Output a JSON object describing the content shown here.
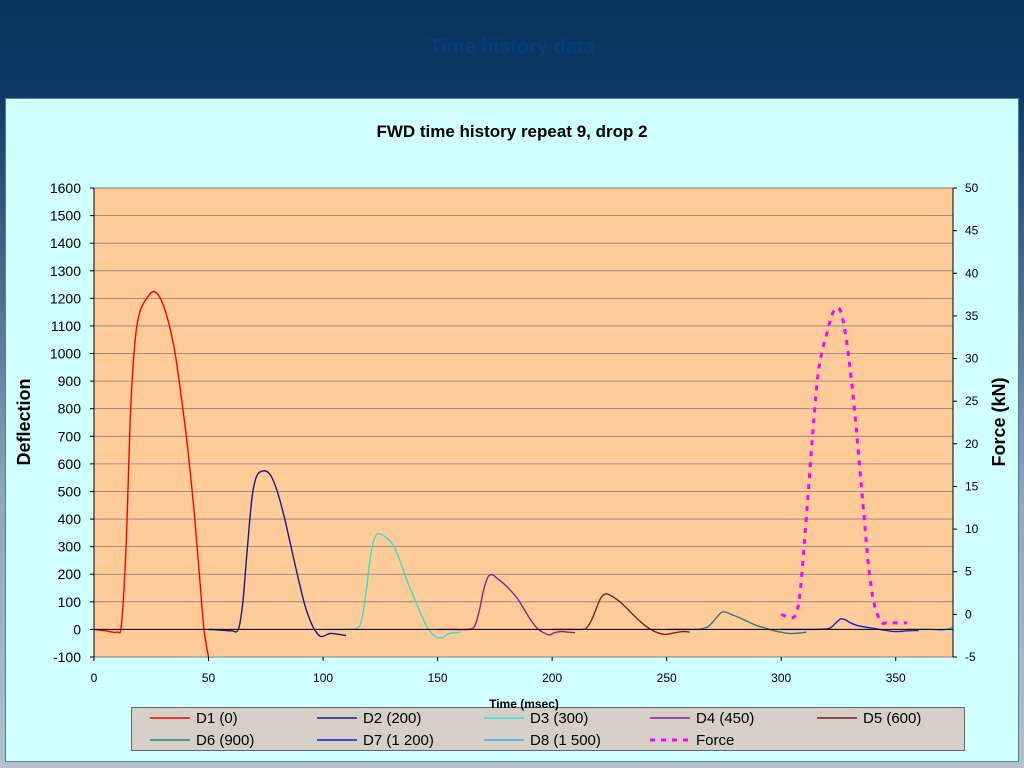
{
  "slide": {
    "title": "Time history data"
  },
  "chart_data": {
    "type": "line",
    "title": "FWD time history repeat 9, drop 2",
    "xlabel": "Time (msec)",
    "ylabel": "Deflection",
    "y2label": "Force (kN)",
    "xlim": [
      0,
      375
    ],
    "ylim": [
      -100,
      1600
    ],
    "y2lim": [
      -5,
      50
    ],
    "x_ticks": [
      0,
      50,
      100,
      150,
      200,
      250,
      300,
      350
    ],
    "y_ticks": [
      -100,
      0,
      100,
      200,
      300,
      400,
      500,
      600,
      700,
      800,
      900,
      1000,
      1100,
      1200,
      1300,
      1400,
      1500,
      1600
    ],
    "y2_ticks": [
      -5,
      0,
      5,
      10,
      15,
      20,
      25,
      30,
      35,
      40,
      45,
      50
    ],
    "grid": "horizontal",
    "legend_position": "bottom",
    "series": [
      {
        "name": "D1 (0)",
        "color": "#ff0000",
        "axis": "left",
        "style": "solid",
        "points": [
          [
            0,
            0
          ],
          [
            5,
            -5
          ],
          [
            10,
            -10
          ],
          [
            12,
            20
          ],
          [
            14,
            300
          ],
          [
            16,
            800
          ],
          [
            18,
            1050
          ],
          [
            20,
            1150
          ],
          [
            23,
            1200
          ],
          [
            26,
            1225
          ],
          [
            29,
            1200
          ],
          [
            32,
            1130
          ],
          [
            35,
            1020
          ],
          [
            38,
            850
          ],
          [
            41,
            650
          ],
          [
            44,
            400
          ],
          [
            46,
            200
          ],
          [
            48,
            0
          ],
          [
            50,
            -100
          ]
        ]
      },
      {
        "name": "D2 (200)",
        "color": "#1a1a80",
        "axis": "left",
        "style": "solid",
        "points": [
          [
            50,
            0
          ],
          [
            55,
            -2
          ],
          [
            60,
            -5
          ],
          [
            63,
            0
          ],
          [
            65,
            100
          ],
          [
            67,
            300
          ],
          [
            69,
            480
          ],
          [
            71,
            555
          ],
          [
            74,
            575
          ],
          [
            77,
            560
          ],
          [
            80,
            500
          ],
          [
            83,
            410
          ],
          [
            86,
            300
          ],
          [
            89,
            190
          ],
          [
            92,
            90
          ],
          [
            95,
            20
          ],
          [
            98,
            -20
          ],
          [
            100,
            -25
          ],
          [
            103,
            -15
          ],
          [
            107,
            -18
          ],
          [
            110,
            -22
          ]
        ]
      },
      {
        "name": "D3 (300)",
        "color": "#33e0d0",
        "axis": "left",
        "style": "solid",
        "points": [
          [
            100,
            0
          ],
          [
            105,
            0
          ],
          [
            110,
            0
          ],
          [
            115,
            5
          ],
          [
            117,
            40
          ],
          [
            119,
            150
          ],
          [
            121,
            280
          ],
          [
            123,
            340
          ],
          [
            125,
            345
          ],
          [
            128,
            330
          ],
          [
            131,
            300
          ],
          [
            134,
            240
          ],
          [
            137,
            170
          ],
          [
            140,
            110
          ],
          [
            143,
            50
          ],
          [
            146,
            0
          ],
          [
            149,
            -25
          ],
          [
            152,
            -30
          ],
          [
            155,
            -15
          ],
          [
            158,
            -12
          ],
          [
            160,
            -10
          ]
        ]
      },
      {
        "name": "D4 (450)",
        "color": "#902090",
        "axis": "left",
        "style": "solid",
        "points": [
          [
            150,
            0
          ],
          [
            157,
            0
          ],
          [
            163,
            0
          ],
          [
            166,
            10
          ],
          [
            168,
            60
          ],
          [
            170,
            140
          ],
          [
            172,
            190
          ],
          [
            174,
            198
          ],
          [
            176,
            185
          ],
          [
            179,
            165
          ],
          [
            182,
            140
          ],
          [
            185,
            110
          ],
          [
            188,
            70
          ],
          [
            191,
            30
          ],
          [
            194,
            0
          ],
          [
            197,
            -15
          ],
          [
            199,
            -20
          ],
          [
            201,
            -12
          ],
          [
            204,
            -8
          ],
          [
            207,
            -10
          ],
          [
            210,
            -12
          ]
        ]
      },
      {
        "name": "D5 (600)",
        "color": "#802020",
        "axis": "left",
        "style": "solid",
        "points": [
          [
            200,
            0
          ],
          [
            207,
            0
          ],
          [
            213,
            0
          ],
          [
            215,
            5
          ],
          [
            217,
            30
          ],
          [
            219,
            70
          ],
          [
            221,
            110
          ],
          [
            223,
            128
          ],
          [
            225,
            125
          ],
          [
            228,
            110
          ],
          [
            231,
            90
          ],
          [
            234,
            65
          ],
          [
            237,
            40
          ],
          [
            240,
            18
          ],
          [
            243,
            0
          ],
          [
            246,
            -12
          ],
          [
            249,
            -18
          ],
          [
            252,
            -15
          ],
          [
            255,
            -10
          ],
          [
            258,
            -8
          ],
          [
            260,
            -10
          ]
        ]
      },
      {
        "name": "D6 (900)",
        "color": "#2e7d72",
        "axis": "left",
        "style": "solid",
        "points": [
          [
            250,
            0
          ],
          [
            256,
            0
          ],
          [
            262,
            0
          ],
          [
            265,
            2
          ],
          [
            268,
            10
          ],
          [
            270,
            25
          ],
          [
            272,
            45
          ],
          [
            274,
            62
          ],
          [
            276,
            62
          ],
          [
            278,
            55
          ],
          [
            281,
            45
          ],
          [
            285,
            30
          ],
          [
            289,
            15
          ],
          [
            293,
            5
          ],
          [
            297,
            -5
          ],
          [
            300,
            -10
          ],
          [
            304,
            -15
          ],
          [
            308,
            -13
          ],
          [
            311,
            -10
          ]
        ]
      },
      {
        "name": "D7 (1 200)",
        "color": "#2020d0",
        "axis": "left",
        "style": "solid",
        "points": [
          [
            300,
            0
          ],
          [
            308,
            0
          ],
          [
            315,
            0
          ],
          [
            320,
            2
          ],
          [
            322,
            8
          ],
          [
            324,
            25
          ],
          [
            326,
            38
          ],
          [
            328,
            35
          ],
          [
            330,
            25
          ],
          [
            333,
            15
          ],
          [
            337,
            8
          ],
          [
            341,
            3
          ],
          [
            345,
            -3
          ],
          [
            350,
            -8
          ],
          [
            355,
            -5
          ],
          [
            360,
            -4
          ]
        ]
      },
      {
        "name": "D8 (1 500)",
        "color": "#33b0e8",
        "axis": "left",
        "style": "solid",
        "points": [
          [
            355,
            0
          ],
          [
            360,
            0
          ],
          [
            365,
            0
          ],
          [
            370,
            -3
          ],
          [
            373,
            2
          ],
          [
            375,
            10
          ]
        ]
      },
      {
        "name": "Force",
        "color": "#ff00ff",
        "axis": "right",
        "style": "dashed",
        "points": [
          [
            300,
            0
          ],
          [
            303,
            -0.3
          ],
          [
            306,
            -0.2
          ],
          [
            308,
            2
          ],
          [
            310,
            8
          ],
          [
            312,
            15
          ],
          [
            314,
            22
          ],
          [
            316,
            28
          ],
          [
            318,
            31
          ],
          [
            320,
            33
          ],
          [
            322,
            35
          ],
          [
            324,
            35.9
          ],
          [
            326,
            35.5
          ],
          [
            328,
            33
          ],
          [
            330,
            29
          ],
          [
            332,
            24
          ],
          [
            334,
            18
          ],
          [
            336,
            12
          ],
          [
            338,
            6
          ],
          [
            340,
            2
          ],
          [
            342,
            0
          ],
          [
            344,
            -1
          ],
          [
            346,
            -1
          ],
          [
            348,
            -1
          ],
          [
            351,
            -1
          ],
          [
            355,
            -1
          ]
        ]
      }
    ]
  }
}
